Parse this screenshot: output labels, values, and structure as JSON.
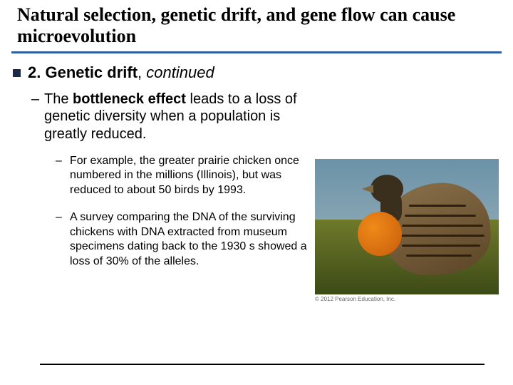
{
  "colors": {
    "title_rule": "#2f5fa0",
    "l1_marker_fill": "#1a2a44",
    "text": "#000000",
    "bottom_rule": "#000000"
  },
  "title": "Natural selection, genetic drift, and gene flow can cause microevolution",
  "heading": {
    "prefix_bold": "2. ",
    "term_bold": "Genetic drift",
    "suffix_plain": ", ",
    "tail_italic": "continued"
  },
  "l2": {
    "dash": "–",
    "pre": "The ",
    "bold": "bottleneck effect",
    "post": " leads to a loss of genetic diversity when a population is greatly reduced."
  },
  "l3_dash": "–",
  "l3_items": [
    "For example, the greater prairie chicken once numbered in the millions (Illinois), but was reduced to about 50 birds by 1993.",
    "A survey comparing the DNA of the surviving chickens with DNA extracted from museum specimens dating back to the 1930 s showed a loss of 30% of the alleles."
  ],
  "figure": {
    "sky_gradient_top": "#6b92a8",
    "sky_gradient_bottom": "#a6b9bd",
    "grass_gradient_top": "#6f7a2a",
    "grass_gradient_bottom": "#3c4a16",
    "bird_body_top": "#8a714b",
    "bird_body_bottom": "#5c4527",
    "bird_head": "#3a2f1c",
    "air_sac_inner": "#f08a17",
    "air_sac_outer": "#c65c0e",
    "beak": "#7d6a44",
    "stripe": "#2b2013",
    "caption": "© 2012 Pearson Education, Inc."
  }
}
